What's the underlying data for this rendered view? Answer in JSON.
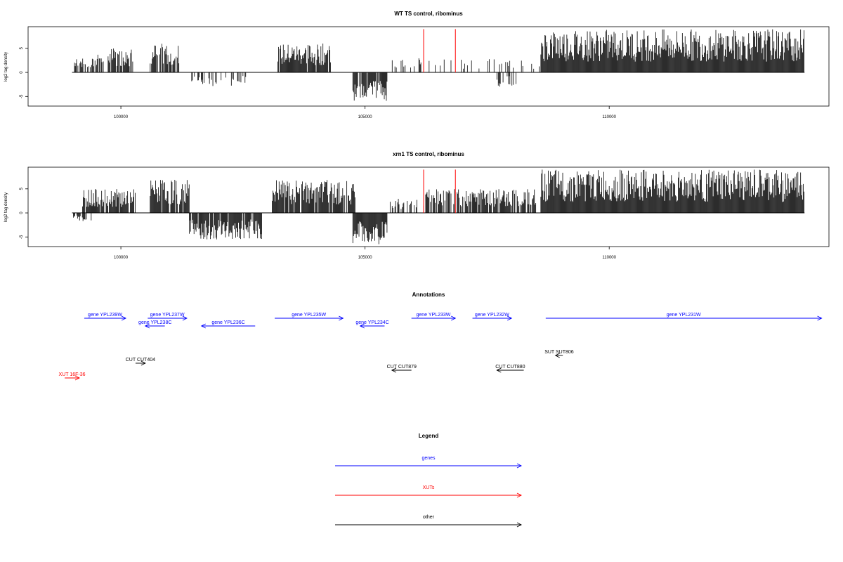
{
  "chart_data": [
    {
      "type": "bar",
      "title": "WT TS control, ribominus",
      "ylabel": "log2 tag density",
      "xlabel": "",
      "xlim": [
        98100,
        114500
      ],
      "ylim": [
        -7,
        9.5
      ],
      "x_ticks": [
        {
          "v": 100000,
          "label": "100000"
        },
        {
          "v": 105000,
          "label": "105000"
        },
        {
          "v": 110000,
          "label": "110000"
        }
      ],
      "y_ticks": [
        {
          "v": -5,
          "label": "-5"
        },
        {
          "v": 0,
          "label": "0"
        },
        {
          "v": 5,
          "label": "5"
        }
      ],
      "baseline": [
        99000,
        114000
      ],
      "series": [
        {
          "color": "#000000",
          "segments": [
            {
              "from": 99050,
              "to": 99500,
              "sign": 1,
              "max": 3.0,
              "density": 0.5
            },
            {
              "from": 99500,
              "to": 100250,
              "sign": 1,
              "max": 5.0,
              "density": 0.7
            },
            {
              "from": 100600,
              "to": 101200,
              "sign": 1,
              "max": 6.0,
              "density": 0.8
            },
            {
              "from": 101450,
              "to": 102600,
              "sign": -1,
              "max": 3.0,
              "density": 0.3
            },
            {
              "from": 103200,
              "to": 104300,
              "sign": 1,
              "max": 6.0,
              "density": 0.9
            },
            {
              "from": 104750,
              "to": 105450,
              "sign": -1,
              "max": 6.0,
              "density": 0.9
            },
            {
              "from": 105500,
              "to": 108600,
              "sign": 1,
              "max": 3.0,
              "density": 0.15
            },
            {
              "from": 107700,
              "to": 108100,
              "sign": -1,
              "max": 3.0,
              "density": 0.4
            },
            {
              "from": 108600,
              "to": 114000,
              "sign": 1,
              "max": 9.0,
              "density": 1.0
            }
          ]
        },
        {
          "color": "#ff0000",
          "points": [
            {
              "x": 106200,
              "y": 9.0
            },
            {
              "x": 106850,
              "y": 9.0
            }
          ]
        }
      ]
    },
    {
      "type": "bar",
      "title": "xrn1 TS control, ribominus",
      "ylabel": "log2 tag density",
      "xlabel": "",
      "xlim": [
        98100,
        114500
      ],
      "ylim": [
        -7,
        9.5
      ],
      "x_ticks": [
        {
          "v": 100000,
          "label": "100000"
        },
        {
          "v": 105000,
          "label": "105000"
        },
        {
          "v": 110000,
          "label": "110000"
        }
      ],
      "y_ticks": [
        {
          "v": -5,
          "label": "-5"
        },
        {
          "v": 0,
          "label": "0"
        },
        {
          "v": 5,
          "label": "5"
        }
      ],
      "baseline": [
        99000,
        114000
      ],
      "series": [
        {
          "color": "#000000",
          "segments": [
            {
              "from": 99000,
              "to": 99400,
              "sign": -1,
              "max": 2.0,
              "density": 0.5
            },
            {
              "from": 99200,
              "to": 100300,
              "sign": 1,
              "max": 5.0,
              "density": 0.8
            },
            {
              "from": 100600,
              "to": 101400,
              "sign": 1,
              "max": 7.0,
              "density": 0.9
            },
            {
              "from": 101400,
              "to": 102900,
              "sign": -1,
              "max": 5.5,
              "density": 0.9
            },
            {
              "from": 103100,
              "to": 104800,
              "sign": 1,
              "max": 7.0,
              "density": 0.9
            },
            {
              "from": 104750,
              "to": 105450,
              "sign": -1,
              "max": 6.5,
              "density": 1.0
            },
            {
              "from": 105500,
              "to": 106100,
              "sign": 1,
              "max": 3.0,
              "density": 0.4
            },
            {
              "from": 106200,
              "to": 108500,
              "sign": 1,
              "max": 5.0,
              "density": 0.7
            },
            {
              "from": 108600,
              "to": 114000,
              "sign": 1,
              "max": 9.0,
              "density": 1.0
            }
          ]
        },
        {
          "color": "#ff0000",
          "points": [
            {
              "x": 106200,
              "y": 9.0
            },
            {
              "x": 106850,
              "y": 9.0
            }
          ]
        }
      ]
    }
  ],
  "annotations": {
    "title": "Annotations",
    "items": [
      {
        "label": "gene YPL239W",
        "kind": "gene",
        "from": 99250,
        "to": 100100,
        "dir": "+",
        "row": 0
      },
      {
        "label": "gene YPL237W",
        "kind": "gene",
        "from": 100550,
        "to": 101350,
        "dir": "+",
        "row": 0
      },
      {
        "label": "gene YPL238C",
        "kind": "gene",
        "from": 100500,
        "to": 100900,
        "dir": "-",
        "row": 1
      },
      {
        "label": "gene YPL236C",
        "kind": "gene",
        "from": 101650,
        "to": 102750,
        "dir": "-",
        "row": 1
      },
      {
        "label": "gene YPL235W",
        "kind": "gene",
        "from": 103150,
        "to": 104550,
        "dir": "+",
        "row": 0
      },
      {
        "label": "gene YPL234C",
        "kind": "gene",
        "from": 104900,
        "to": 105400,
        "dir": "-",
        "row": 1
      },
      {
        "label": "gene YPL233W",
        "kind": "gene",
        "from": 105950,
        "to": 106850,
        "dir": "+",
        "row": 0
      },
      {
        "label": "gene YPL232W",
        "kind": "gene",
        "from": 107200,
        "to": 108000,
        "dir": "+",
        "row": 0
      },
      {
        "label": "gene YPL231W",
        "kind": "gene",
        "from": 108700,
        "to": 114350,
        "dir": "+",
        "row": 0
      },
      {
        "label": "SUT SUT806",
        "kind": "other",
        "from": 108900,
        "to": 109050,
        "dir": "-",
        "row": 4
      },
      {
        "label": "CUT CUT404",
        "kind": "other",
        "from": 100300,
        "to": 100500,
        "dir": "+",
        "row": 5
      },
      {
        "label": "CUT CUT879",
        "kind": "other",
        "from": 105550,
        "to": 105950,
        "dir": "-",
        "row": 6
      },
      {
        "label": "CUT CUT880",
        "kind": "other",
        "from": 107700,
        "to": 108250,
        "dir": "-",
        "row": 6
      },
      {
        "label": "XUT 16F-36",
        "kind": "xut",
        "from": 98850,
        "to": 99150,
        "dir": "+",
        "row": 7
      }
    ]
  },
  "legend": {
    "title": "Legend",
    "items": [
      {
        "label": "genes",
        "kind": "gene"
      },
      {
        "label": "XUTs",
        "kind": "xut"
      },
      {
        "label": "other",
        "kind": "other"
      }
    ]
  },
  "colors": {
    "gene": "#0000ff",
    "xut": "#ff0000",
    "other": "#000000"
  }
}
